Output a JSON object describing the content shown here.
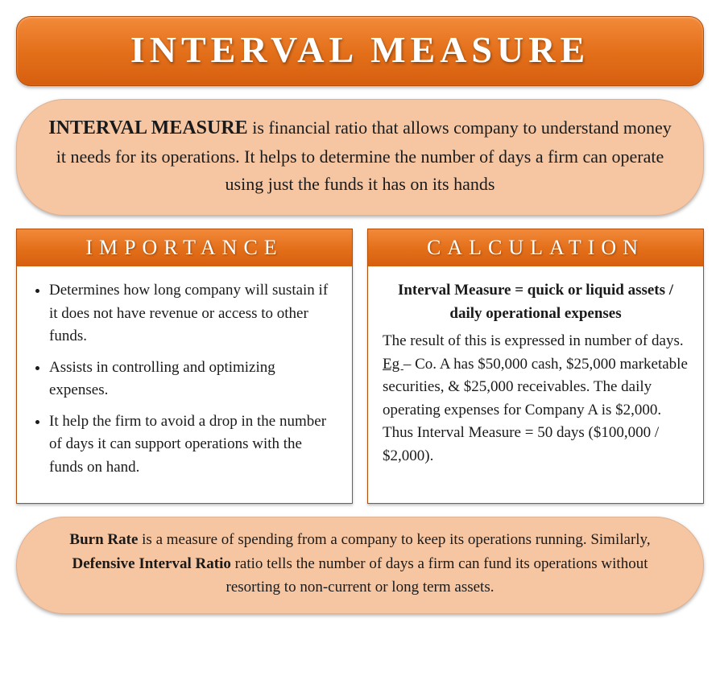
{
  "colors": {
    "primary_orange_top": "#f28a3a",
    "primary_orange_mid": "#e4701b",
    "primary_orange_bottom": "#d65f0f",
    "box_fill": "#f6c6a3",
    "border": "#b04e0a",
    "text": "#1a1a1a",
    "white": "#ffffff"
  },
  "title": "INTERVAL MEASURE",
  "definition": {
    "term": "INTERVAL MEASURE",
    "rest": " is financial ratio that allows company to understand money it needs for its operations. It helps to determine the number of days a firm can operate using just the funds it has on its hands"
  },
  "importance": {
    "header": "IMPORTANCE",
    "bullets": [
      "Determines how long company will sustain if it does not have revenue or access to other funds.",
      "Assists in controlling and optimizing expenses.",
      "It help the firm to avoid a drop in the number of days it can support operations with the funds on hand."
    ]
  },
  "calculation": {
    "header": "CALCULATION",
    "formula": "Interval Measure = quick or liquid assets / daily operational expenses",
    "result_line": "The result of this is expressed in number of days.",
    "eg_label": "Eg ",
    "eg_body": "– Co. A has $50,000 cash, $25,000 marketable securities, & $25,000 receivables. The daily operating expenses for Company A is $2,000.",
    "eg_result": "Thus Interval Measure = 50 days ($100,000 / $2,000)."
  },
  "footer": {
    "burn_label": "Burn Rate",
    "burn_text": " is a measure of spending from a company to keep its operations running. Similarly, ",
    "dir_label": "Defensive Interval Ratio",
    "dir_text": " ratio tells the number of days a firm can fund its operations without resorting to non-current or long term assets."
  }
}
